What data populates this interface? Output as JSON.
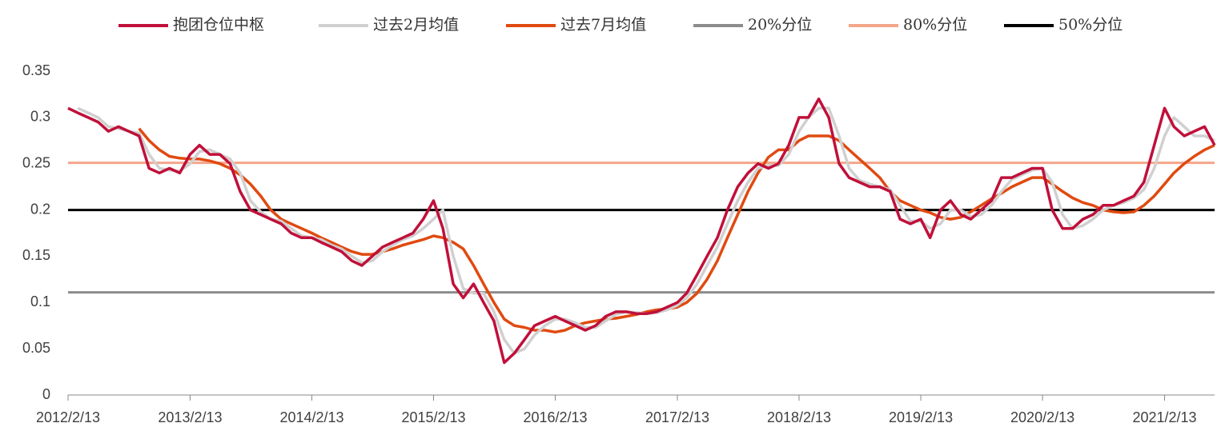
{
  "chart_data": {
    "type": "line",
    "x": [
      "2012/2/13",
      "2012/3/13",
      "2012/4/13",
      "2012/5/13",
      "2012/6/13",
      "2012/7/13",
      "2012/8/13",
      "2012/9/13",
      "2012/10/13",
      "2012/11/13",
      "2012/12/13",
      "2013/1/13",
      "2013/2/13",
      "2013/3/13",
      "2013/4/13",
      "2013/5/13",
      "2013/6/13",
      "2013/7/13",
      "2013/8/13",
      "2013/9/13",
      "2013/10/13",
      "2013/11/13",
      "2013/12/13",
      "2014/1/13",
      "2014/2/13",
      "2014/3/13",
      "2014/4/13",
      "2014/5/13",
      "2014/6/13",
      "2014/7/13",
      "2014/8/13",
      "2014/9/13",
      "2014/10/13",
      "2014/11/13",
      "2014/12/13",
      "2015/1/13",
      "2015/2/13",
      "2015/3/13",
      "2015/4/13",
      "2015/5/13",
      "2015/6/13",
      "2015/7/13",
      "2015/8/13",
      "2015/9/13",
      "2015/10/13",
      "2015/11/13",
      "2015/12/13",
      "2016/1/13",
      "2016/2/13",
      "2016/3/13",
      "2016/4/13",
      "2016/5/13",
      "2016/6/13",
      "2016/7/13",
      "2016/8/13",
      "2016/9/13",
      "2016/10/13",
      "2016/11/13",
      "2016/12/13",
      "2017/1/13",
      "2017/2/13",
      "2017/3/13",
      "2017/4/13",
      "2017/5/13",
      "2017/6/13",
      "2017/7/13",
      "2017/8/13",
      "2017/9/13",
      "2017/10/13",
      "2017/11/13",
      "2017/12/13",
      "2018/1/13",
      "2018/2/13",
      "2018/3/13",
      "2018/4/13",
      "2018/5/13",
      "2018/6/13",
      "2018/7/13",
      "2018/8/13",
      "2018/9/13",
      "2018/10/13",
      "2018/11/13",
      "2018/12/13",
      "2019/1/13",
      "2019/2/13",
      "2019/3/13",
      "2019/4/13",
      "2019/5/13",
      "2019/6/13",
      "2019/7/13",
      "2019/8/13",
      "2019/9/13",
      "2019/10/13",
      "2019/11/13",
      "2019/12/13",
      "2020/1/13",
      "2020/2/13",
      "2020/3/13",
      "2020/4/13",
      "2020/5/13",
      "2020/6/13",
      "2020/7/13",
      "2020/8/13",
      "2020/9/13",
      "2020/10/13",
      "2020/11/13",
      "2020/12/13",
      "2021/1/13",
      "2021/2/13",
      "2021/3/13",
      "2021/4/13",
      "2021/5/13",
      "2021/6/13",
      "2021/7/13"
    ],
    "series": [
      {
        "name": "抱团仓位中枢",
        "color": "#c0103a",
        "values": [
          0.31,
          0.305,
          0.3,
          0.295,
          0.285,
          0.29,
          0.285,
          0.28,
          0.245,
          0.24,
          0.245,
          0.24,
          0.26,
          0.27,
          0.26,
          0.26,
          0.25,
          0.22,
          0.2,
          0.195,
          0.19,
          0.185,
          0.175,
          0.17,
          0.17,
          0.165,
          0.16,
          0.155,
          0.145,
          0.14,
          0.15,
          0.16,
          0.165,
          0.17,
          0.175,
          0.19,
          0.21,
          0.18,
          0.12,
          0.105,
          0.12,
          0.1,
          0.08,
          0.035,
          0.045,
          0.06,
          0.075,
          0.08,
          0.085,
          0.08,
          0.075,
          0.07,
          0.075,
          0.085,
          0.09,
          0.09,
          0.088,
          0.088,
          0.09,
          0.095,
          0.1,
          0.11,
          0.13,
          0.15,
          0.17,
          0.2,
          0.225,
          0.24,
          0.25,
          0.245,
          0.25,
          0.27,
          0.3,
          0.3,
          0.32,
          0.3,
          0.25,
          0.235,
          0.23,
          0.225,
          0.225,
          0.22,
          0.19,
          0.185,
          0.19,
          0.17,
          0.2,
          0.21,
          0.195,
          0.19,
          0.2,
          0.21,
          0.235,
          0.235,
          0.24,
          0.245,
          0.245,
          0.2,
          0.18,
          0.18,
          0.19,
          0.195,
          0.205,
          0.205,
          0.21,
          0.215,
          0.23,
          0.27,
          0.31,
          0.29,
          0.28,
          0.285,
          0.29,
          0.27
        ]
      },
      {
        "name": "过去2月均值",
        "color": "#d0d0d0",
        "values": [
          null,
          0.31,
          0.305,
          0.3,
          0.29,
          0.288,
          0.285,
          0.283,
          0.26,
          0.245,
          0.243,
          0.242,
          0.25,
          0.263,
          0.265,
          0.26,
          0.255,
          0.24,
          0.21,
          0.198,
          0.19,
          0.188,
          0.18,
          0.172,
          0.17,
          0.168,
          0.162,
          0.158,
          0.15,
          0.143,
          0.145,
          0.155,
          0.162,
          0.168,
          0.172,
          0.18,
          0.19,
          0.2,
          0.15,
          0.115,
          0.11,
          0.11,
          0.09,
          0.06,
          0.045,
          0.05,
          0.065,
          0.075,
          0.082,
          0.082,
          0.078,
          0.073,
          0.073,
          0.08,
          0.087,
          0.09,
          0.089,
          0.088,
          0.089,
          0.092,
          0.097,
          0.105,
          0.12,
          0.14,
          0.16,
          0.185,
          0.21,
          0.23,
          0.245,
          0.248,
          0.248,
          0.26,
          0.285,
          0.3,
          0.31,
          0.31,
          0.28,
          0.245,
          0.232,
          0.228,
          0.225,
          0.222,
          0.205,
          0.188,
          0.188,
          0.18,
          0.185,
          0.2,
          0.2,
          0.193,
          0.195,
          0.205,
          0.22,
          0.233,
          0.238,
          0.243,
          0.245,
          0.23,
          0.195,
          0.18,
          0.183,
          0.19,
          0.2,
          0.205,
          0.208,
          0.213,
          0.222,
          0.245,
          0.28,
          0.3,
          0.29,
          0.28,
          0.28,
          0.275
        ]
      },
      {
        "name": "过去7月均值",
        "color": "#e04a10",
        "values": [
          null,
          null,
          null,
          null,
          null,
          null,
          null,
          0.288,
          0.275,
          0.265,
          0.258,
          0.256,
          0.255,
          0.255,
          0.253,
          0.25,
          0.245,
          0.238,
          0.228,
          0.215,
          0.2,
          0.19,
          0.185,
          0.18,
          0.175,
          0.17,
          0.165,
          0.16,
          0.155,
          0.152,
          0.152,
          0.155,
          0.158,
          0.162,
          0.165,
          0.168,
          0.172,
          0.17,
          0.165,
          0.158,
          0.14,
          0.12,
          0.1,
          0.082,
          0.075,
          0.073,
          0.07,
          0.07,
          0.068,
          0.07,
          0.075,
          0.078,
          0.08,
          0.082,
          0.083,
          0.085,
          0.087,
          0.09,
          0.092,
          0.093,
          0.095,
          0.1,
          0.11,
          0.125,
          0.145,
          0.17,
          0.195,
          0.22,
          0.24,
          0.257,
          0.265,
          0.265,
          0.275,
          0.28,
          0.28,
          0.28,
          0.275,
          0.265,
          0.255,
          0.245,
          0.235,
          0.22,
          0.21,
          0.205,
          0.2,
          0.197,
          0.192,
          0.19,
          0.192,
          0.198,
          0.205,
          0.212,
          0.218,
          0.225,
          0.23,
          0.235,
          0.235,
          0.228,
          0.22,
          0.213,
          0.208,
          0.205,
          0.2,
          0.198,
          0.197,
          0.198,
          0.205,
          0.215,
          0.228,
          0.24,
          0.25,
          0.258,
          0.265,
          0.27
        ]
      },
      {
        "name": "20%分位",
        "color": "#8c8c8c",
        "x": [
          "2012/2/13",
          "2021/7/13"
        ],
        "values": [
          0.111,
          0.111
        ]
      },
      {
        "name": "80%分位",
        "color": "#f4a58a",
        "x": [
          "2012/2/13",
          "2021/7/13"
        ],
        "values": [
          0.251,
          0.251
        ]
      },
      {
        "name": "50%分位",
        "color": "#000000",
        "x": [
          "2012/2/13",
          "2021/7/13"
        ],
        "values": [
          0.2,
          0.2
        ]
      }
    ],
    "xlim": [
      "2012/2/13",
      "2021/7/13"
    ],
    "xticks": [
      "2012/2/13",
      "2013/2/13",
      "2014/2/13",
      "2015/2/13",
      "2016/2/13",
      "2017/2/13",
      "2018/2/13",
      "2019/2/13",
      "2020/2/13",
      "2021/2/13"
    ],
    "ylim": [
      0,
      0.35
    ],
    "yticks": [
      0,
      0.05,
      0.1,
      0.15,
      0.2,
      0.25,
      0.3,
      0.35
    ],
    "legend": "top"
  }
}
